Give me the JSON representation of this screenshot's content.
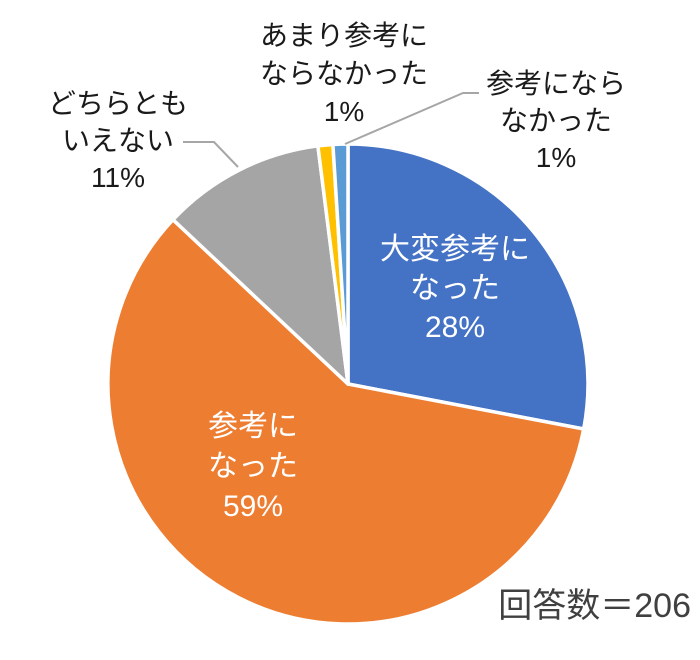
{
  "chart_data": {
    "type": "pie",
    "title": "",
    "start_angle_deg": 0,
    "direction": "clockwise",
    "legend": "none",
    "annotation": "回答数＝206",
    "total_responses": 206,
    "slices": [
      {
        "label": "大変参考になった",
        "value": 28,
        "percent_label": "28%",
        "color": "#4472C4",
        "label_position": "inside",
        "label_color": "#ffffff",
        "label_lines": [
          "大変参考に",
          "なった",
          "28%"
        ]
      },
      {
        "label": "参考になった",
        "value": 59,
        "percent_label": "59%",
        "color": "#ED7D31",
        "label_position": "inside",
        "label_color": "#ffffff",
        "label_lines": [
          "参考に",
          "なった",
          "59%"
        ]
      },
      {
        "label": "どちらともいえない",
        "value": 11,
        "percent_label": "11%",
        "color": "#A5A5A5",
        "label_position": "outside",
        "label_color": "#1a1a1a",
        "label_lines": [
          "どちらとも",
          "いえない",
          "11%"
        ],
        "leader_line": true
      },
      {
        "label": "あまり参考にならなかった",
        "value": 1,
        "percent_label": "1%",
        "color": "#FFC000",
        "label_position": "outside",
        "label_color": "#1a1a1a",
        "label_lines": [
          "あまり参考に",
          "ならなかった",
          "1%"
        ],
        "leader_line": false
      },
      {
        "label": "参考にならなかった",
        "value": 1,
        "percent_label": "1%",
        "color": "#5B9BD5",
        "label_position": "outside",
        "label_color": "#1a1a1a",
        "label_lines": [
          "参考になら",
          "なかった",
          "1%"
        ],
        "leader_line": true
      }
    ],
    "colors": {
      "leader_line": "#A6A6A6",
      "slice_border": "#ffffff",
      "annotation_text": "#404040",
      "outside_label_text": "#1a1a1a",
      "background": "#ffffff"
    }
  }
}
